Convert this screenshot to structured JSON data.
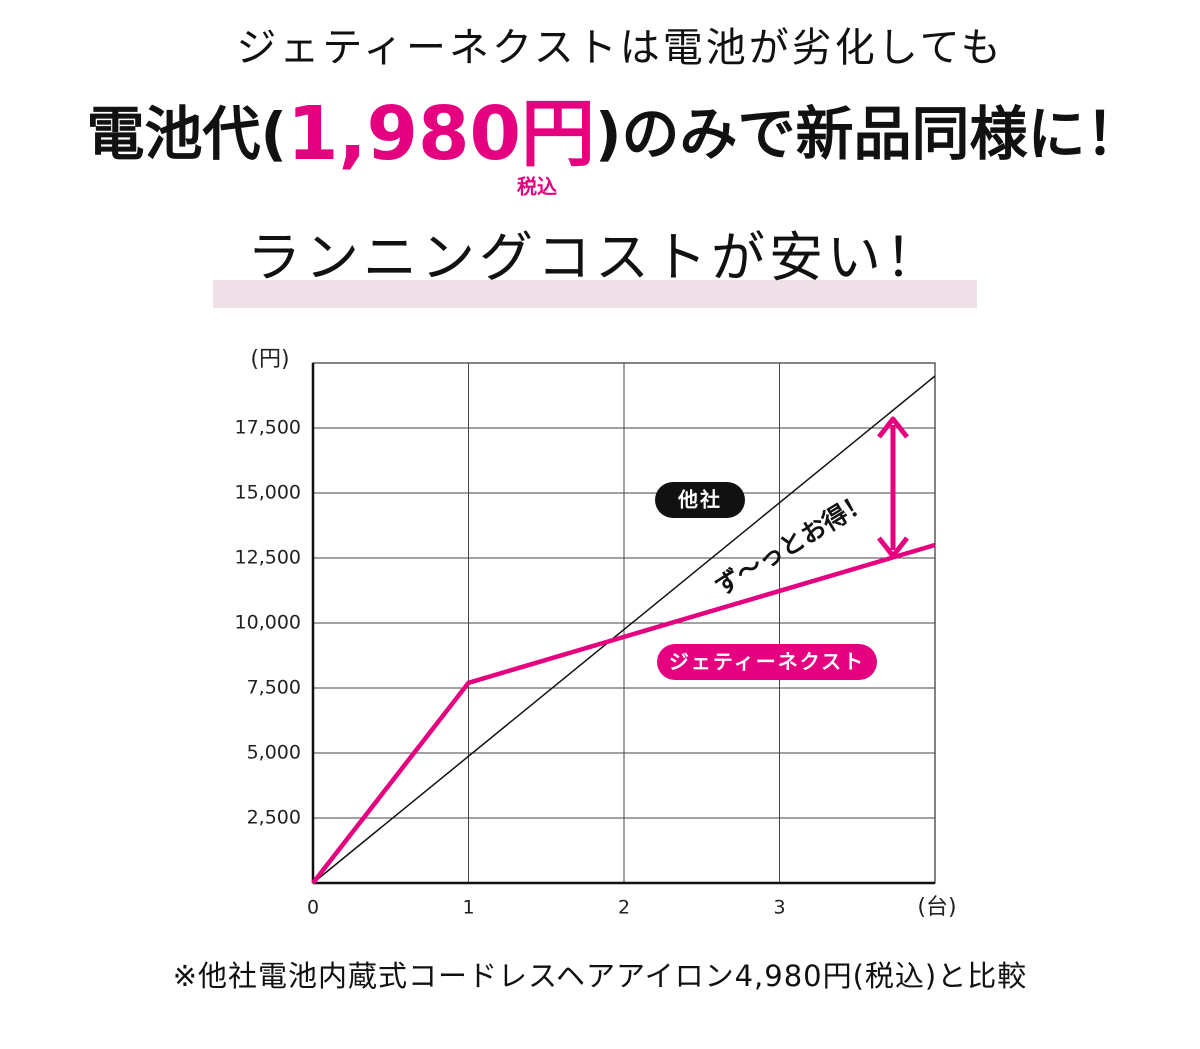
{
  "header": {
    "line1": "ジェティーネクストは電池が劣化しても",
    "line2_pre": "電池代(",
    "price": "1,980円",
    "line2_post": ")のみで新品同様に！",
    "tax": "税込",
    "headline": "ランニングコストが安い！"
  },
  "chart_data": {
    "type": "line",
    "y_label": "(円)",
    "x_label": "(台)",
    "xlim": [
      0,
      4
    ],
    "ylim": [
      0,
      20000
    ],
    "xticks": [
      0,
      1,
      2,
      3
    ],
    "yticks": [
      {
        "value": 2500,
        "label": "2,500"
      },
      {
        "value": 5000,
        "label": "5,000"
      },
      {
        "value": 7500,
        "label": "7,500"
      },
      {
        "value": 10000,
        "label": "10,000"
      },
      {
        "value": 12500,
        "label": "12,500"
      },
      {
        "value": 15000,
        "label": "15,000"
      },
      {
        "value": 17500,
        "label": "17,500"
      }
    ],
    "grid": true,
    "series": [
      {
        "name": "他社",
        "color": "#111111",
        "x": [
          0,
          4
        ],
        "values": [
          0,
          19500
        ]
      },
      {
        "name": "ジェティーネクスト",
        "color": "#e4007f",
        "x": [
          0,
          1,
          4
        ],
        "values": [
          0,
          7700,
          13000
        ]
      }
    ],
    "annotation": "ず〜っとお得！"
  },
  "footnote": "※他社電池内蔵式コードレスヘアアイロン4,980円(税込)と比較"
}
